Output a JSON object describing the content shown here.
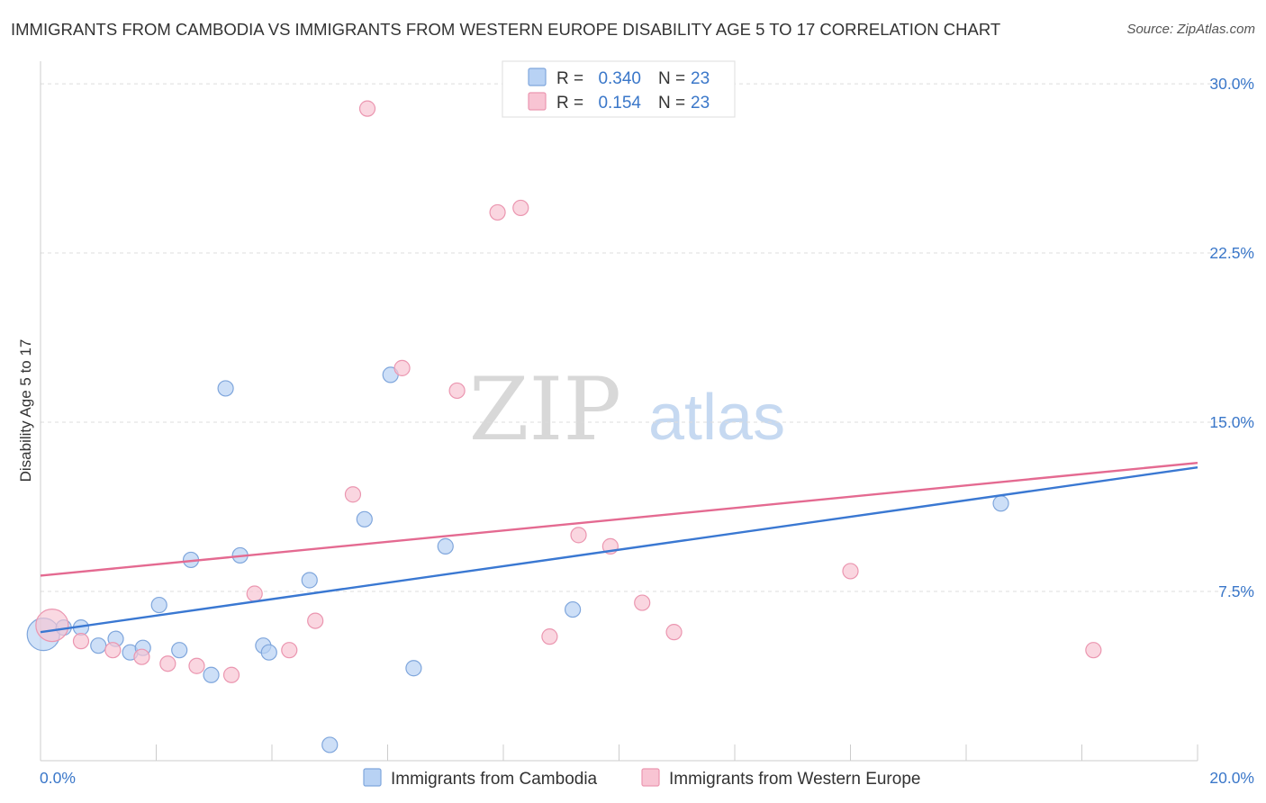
{
  "header": {
    "title": "IMMIGRANTS FROM CAMBODIA VS IMMIGRANTS FROM WESTERN EUROPE DISABILITY AGE 5 TO 17 CORRELATION CHART",
    "source": "Source: ZipAtlas.com"
  },
  "watermark": {
    "zip": "ZIP",
    "atlas": "atlas"
  },
  "legend_box": {
    "rows": [
      {
        "r_label": "R =",
        "r_value": "0.340",
        "n_label": "N =",
        "n_value": "23",
        "series": "Immigrants from Cambodia"
      },
      {
        "r_label": "R =",
        "r_value": "0.154",
        "n_label": "N =",
        "n_value": "23",
        "series": "Immigrants from Western Europe"
      }
    ]
  },
  "bottom_legend": {
    "items": [
      "Immigrants from Cambodia",
      "Immigrants from Western Europe"
    ]
  },
  "colors": {
    "cambodia_fill": "#b8d2f4",
    "cambodia_stroke": "#7fa6dc",
    "cambodia_line": "#3a78d2",
    "weurope_fill": "#f8c4d3",
    "weurope_stroke": "#eb96b0",
    "weurope_line": "#e46a91",
    "axis_text": "#3a77c9",
    "grid": "#dddddd"
  },
  "chart_data": {
    "type": "scatter",
    "title": "IMMIGRANTS FROM CAMBODIA VS IMMIGRANTS FROM WESTERN EUROPE DISABILITY AGE 5 TO 17 CORRELATION CHART",
    "xlabel": "",
    "ylabel": "Disability Age 5 to 17",
    "xlim": [
      0,
      20
    ],
    "ylim": [
      0,
      31
    ],
    "x_tick_labels": [
      "0.0%",
      "20.0%"
    ],
    "y_ticks": [
      7.5,
      15.0,
      22.5,
      30.0
    ],
    "y_tick_labels": [
      "7.5%",
      "15.0%",
      "22.5%",
      "30.0%"
    ],
    "grid": true,
    "legend_position": "top-center",
    "series": [
      {
        "name": "Immigrants from Cambodia",
        "R": 0.34,
        "N": 23,
        "trend": {
          "x": [
            0,
            20
          ],
          "y": [
            5.7,
            13.0
          ]
        },
        "points": [
          {
            "x": 0.05,
            "y": 5.6,
            "big": true
          },
          {
            "x": 0.4,
            "y": 5.9
          },
          {
            "x": 0.7,
            "y": 5.9
          },
          {
            "x": 1.0,
            "y": 5.1
          },
          {
            "x": 1.3,
            "y": 5.4
          },
          {
            "x": 1.55,
            "y": 4.8
          },
          {
            "x": 1.77,
            "y": 5.0
          },
          {
            "x": 2.05,
            "y": 6.9
          },
          {
            "x": 2.4,
            "y": 4.9
          },
          {
            "x": 2.6,
            "y": 8.9
          },
          {
            "x": 2.95,
            "y": 3.8
          },
          {
            "x": 3.2,
            "y": 16.5
          },
          {
            "x": 3.45,
            "y": 9.1
          },
          {
            "x": 3.85,
            "y": 5.1
          },
          {
            "x": 3.95,
            "y": 4.8
          },
          {
            "x": 4.65,
            "y": 8.0
          },
          {
            "x": 5.0,
            "y": 0.7
          },
          {
            "x": 5.6,
            "y": 10.7
          },
          {
            "x": 6.05,
            "y": 17.1
          },
          {
            "x": 6.45,
            "y": 4.1
          },
          {
            "x": 7.0,
            "y": 9.5
          },
          {
            "x": 9.2,
            "y": 6.7
          },
          {
            "x": 16.6,
            "y": 11.4
          }
        ]
      },
      {
        "name": "Immigrants from Western Europe",
        "R": 0.154,
        "N": 23,
        "trend": {
          "x": [
            0,
            20
          ],
          "y": [
            8.2,
            13.2
          ]
        },
        "points": [
          {
            "x": 0.2,
            "y": 6.0,
            "big": true
          },
          {
            "x": 0.7,
            "y": 5.3
          },
          {
            "x": 1.25,
            "y": 4.9
          },
          {
            "x": 1.75,
            "y": 4.6
          },
          {
            "x": 2.2,
            "y": 4.3
          },
          {
            "x": 2.7,
            "y": 4.2
          },
          {
            "x": 3.3,
            "y": 3.8
          },
          {
            "x": 3.7,
            "y": 7.4
          },
          {
            "x": 4.3,
            "y": 4.9
          },
          {
            "x": 4.75,
            "y": 6.2
          },
          {
            "x": 5.4,
            "y": 11.8
          },
          {
            "x": 5.65,
            "y": 28.9
          },
          {
            "x": 6.25,
            "y": 17.4
          },
          {
            "x": 7.2,
            "y": 16.4
          },
          {
            "x": 7.9,
            "y": 24.3
          },
          {
            "x": 8.3,
            "y": 24.5
          },
          {
            "x": 8.8,
            "y": 5.5
          },
          {
            "x": 9.3,
            "y": 10.0
          },
          {
            "x": 9.85,
            "y": 9.5
          },
          {
            "x": 10.4,
            "y": 7.0
          },
          {
            "x": 10.95,
            "y": 5.7
          },
          {
            "x": 14.0,
            "y": 8.4
          },
          {
            "x": 18.2,
            "y": 4.9
          }
        ]
      }
    ]
  }
}
